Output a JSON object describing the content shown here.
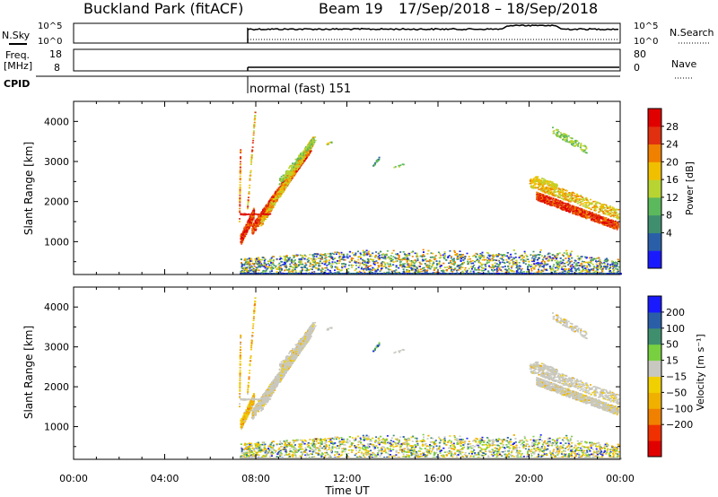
{
  "header": {
    "title": "Buckland Park (fitACF)",
    "beam": "Beam 19",
    "date_range": "17/Sep/2018 – 18/Sep/2018"
  },
  "params": {
    "nsky_label": "N.Sky",
    "nsearch_label": "N.Search",
    "freq_label": "Freq.",
    "freq_unit": "[MHz]",
    "nave_label": "Nave",
    "cpid_label": "CPID",
    "cpid_text": "normal (fast) 151",
    "noise_ticks": [
      "10^5",
      "10^0"
    ],
    "noise_right_ticks": [
      "10^5",
      "10^0"
    ],
    "freq_ticks": [
      "18",
      "8"
    ],
    "nave_ticks": [
      "80",
      "0"
    ]
  },
  "colors": {
    "power": [
      "#1a1aff",
      "#2a5fa8",
      "#3f8f6f",
      "#5cb85c",
      "#b8d432",
      "#f0c000",
      "#f08000",
      "#e03010",
      "#e00000"
    ],
    "velocity": [
      "#e00000",
      "#f03000",
      "#f08000",
      "#f0b000",
      "#f0d000",
      "#c8c8c0",
      "#78d040",
      "#3f8f6f",
      "#2a5fa8",
      "#1a1aff"
    ],
    "ground_gray": "#c8c8c0"
  },
  "chart_data": [
    {
      "type": "heatmap",
      "name": "power",
      "ylabel": "Slant Range [km]",
      "yticks": [
        1000,
        2000,
        3000,
        4000
      ],
      "ylim": [
        180,
        4500
      ],
      "xlim": [
        0,
        24
      ],
      "colorbar_label": "Power [dB]",
      "colorbar_ticks": [
        "28",
        "24",
        "20",
        "16",
        "12",
        "8",
        "4"
      ]
    },
    {
      "type": "heatmap",
      "name": "velocity",
      "ylabel": "Slant Range [km]",
      "yticks": [
        1000,
        2000,
        3000,
        4000
      ],
      "ylim": [
        180,
        4500
      ],
      "xlim": [
        0,
        24
      ],
      "xticks": [
        "00:00",
        "04:00",
        "08:00",
        "12:00",
        "16:00",
        "20:00",
        "00:00"
      ],
      "xlabel": "Time UT",
      "colorbar_label": "Velocity [m s⁻¹]",
      "colorbar_ticks": [
        "200",
        "100",
        "50",
        "15",
        "−15",
        "−50",
        "−100",
        "−200"
      ]
    }
  ]
}
